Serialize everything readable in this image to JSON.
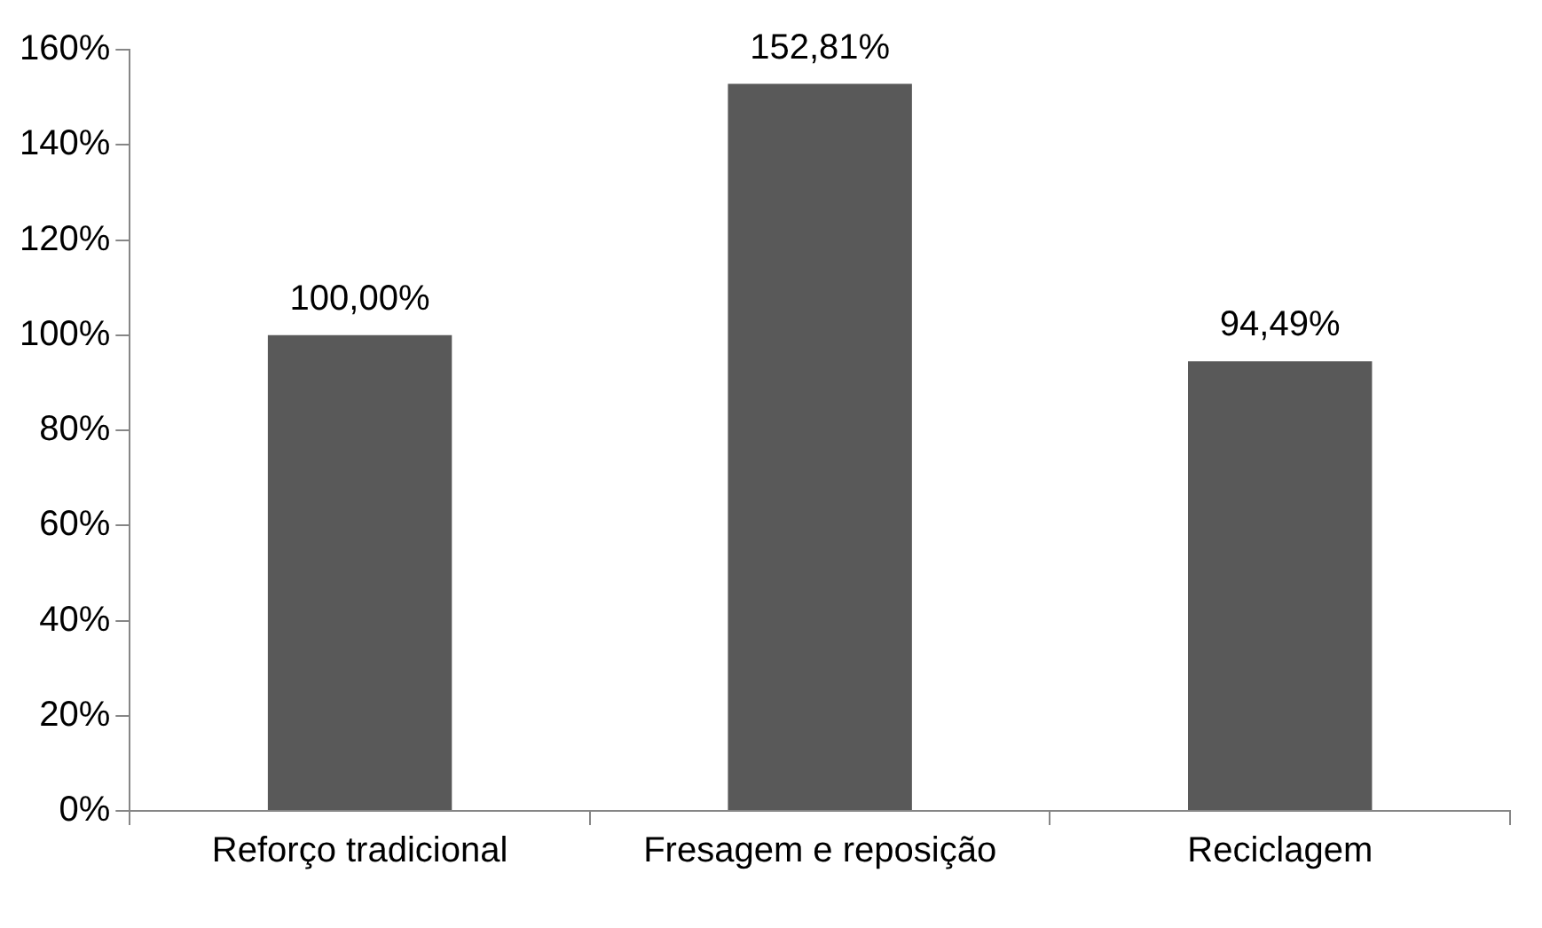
{
  "chart_data": {
    "type": "bar",
    "categories": [
      "Reforço tradicional",
      "Fresagem e reposição",
      "Reciclagem"
    ],
    "values": [
      100,
      152.81,
      94.49
    ],
    "color": "#595959",
    "value_labels": [
      "100,00%",
      "152,81%",
      "94,49%"
    ],
    "ylim": [
      0,
      160
    ],
    "yticks": [
      {
        "value": 0,
        "label": "0%"
      },
      {
        "value": 20,
        "label": "20%"
      },
      {
        "value": 40,
        "label": "40%"
      },
      {
        "value": 60,
        "label": "60%"
      },
      {
        "value": 80,
        "label": "80%"
      },
      {
        "value": 100,
        "label": "100%"
      },
      {
        "value": 120,
        "label": "120%"
      },
      {
        "value": 140,
        "label": "140%"
      },
      {
        "value": 160,
        "label": "160%"
      }
    ],
    "grid": false,
    "legend": false
  }
}
